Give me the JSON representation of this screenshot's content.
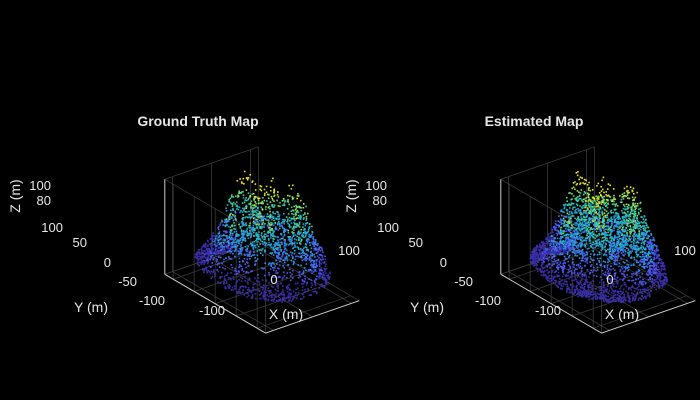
{
  "chart_data": [
    {
      "type": "scatter3d",
      "title": "Ground Truth Map",
      "xlabel": "X (m)",
      "ylabel": "Y (m)",
      "zlabel": "Z (m)",
      "x_ticks": [
        "-100",
        "0",
        "100"
      ],
      "y_ticks": [
        "100",
        "50",
        "0",
        "-50",
        "-100"
      ],
      "z_ticks": [
        "100",
        "80"
      ],
      "xlim": [
        -120,
        120
      ],
      "ylim": [
        -120,
        120
      ],
      "zlim": [
        60,
        110
      ],
      "grid": true,
      "colormap": [
        "#3b2fa8",
        "#4a57f0",
        "#2f8fe8",
        "#22b6c9",
        "#3fd39a",
        "#a6e04a",
        "#f5e51b"
      ],
      "region": "circle",
      "radius": 118,
      "hotspots": [
        {
          "x": 40,
          "y": 80,
          "z": 103
        },
        {
          "x": 10,
          "y": 20,
          "z": 106
        },
        {
          "x": 60,
          "y": 40,
          "z": 104
        },
        {
          "x": 100,
          "y": 20,
          "z": 100
        },
        {
          "x": -20,
          "y": -20,
          "z": 100
        },
        {
          "x": 20,
          "y": -60,
          "z": 98
        },
        {
          "x": -60,
          "y": 20,
          "z": 96
        },
        {
          "x": 70,
          "y": -20,
          "z": 99
        }
      ]
    },
    {
      "type": "scatter3d",
      "title": "Estimated Map",
      "xlabel": "X (m)",
      "ylabel": "Y (m)",
      "zlabel": "Z (m)",
      "x_ticks": [
        "-100",
        "0",
        "100"
      ],
      "y_ticks": [
        "100",
        "50",
        "0",
        "-50",
        "-100"
      ],
      "z_ticks": [
        "100",
        "80"
      ],
      "xlim": [
        -120,
        120
      ],
      "ylim": [
        -120,
        120
      ],
      "zlim": [
        60,
        110
      ],
      "grid": true,
      "colormap": [
        "#3b2fa8",
        "#4a57f0",
        "#2f8fe8",
        "#22b6c9",
        "#3fd39a",
        "#a6e04a",
        "#f5e51b"
      ],
      "region": "circle",
      "radius": 120,
      "hotspots": [
        {
          "x": 40,
          "y": 80,
          "z": 103
        },
        {
          "x": 10,
          "y": 20,
          "z": 106
        },
        {
          "x": 60,
          "y": 40,
          "z": 104
        },
        {
          "x": 100,
          "y": 20,
          "z": 100
        },
        {
          "x": -20,
          "y": -20,
          "z": 100
        },
        {
          "x": 20,
          "y": -60,
          "z": 98
        },
        {
          "x": -60,
          "y": 20,
          "z": 96
        },
        {
          "x": 70,
          "y": -20,
          "z": 99
        }
      ]
    }
  ]
}
